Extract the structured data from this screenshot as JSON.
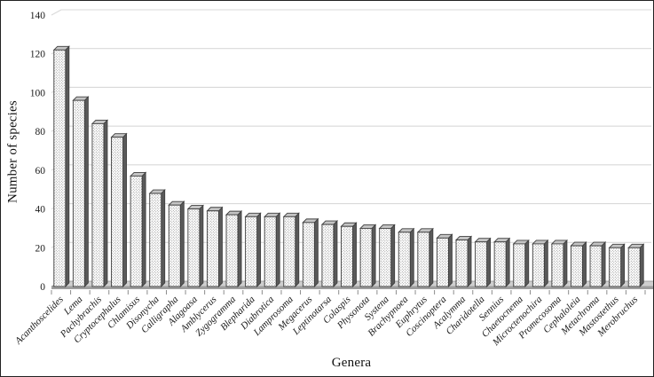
{
  "figure": {
    "background": "#ffffff",
    "border_color": "#222222"
  },
  "chart_data": {
    "type": "bar",
    "title": "",
    "xlabel": "Genera",
    "ylabel": "Number of species",
    "ylim": [
      0,
      140
    ],
    "ytick_step": 20,
    "yticks": [
      0,
      20,
      40,
      60,
      80,
      100,
      120,
      140
    ],
    "grid": true,
    "legend": "none",
    "style": "3d-column-pattern-fill",
    "categories": [
      "Acanthoscelides",
      "Lema",
      "Pachybrachis",
      "Cryptocephalus",
      "Chlamisus",
      "Disonycha",
      "Calligrapha",
      "Alagoasa",
      "Amblycerus",
      "Zygogramma",
      "Blepharida",
      "Diabrotica",
      "Lamprosoma",
      "Megacerus",
      "Leptinotarsa",
      "Colaspis",
      "Physonota",
      "Systena",
      "Brachypnoea",
      "Euphrytus",
      "Coscinoptera",
      "Acalymma",
      "Charidotella",
      "Sennius",
      "Chaetocnema",
      "Microctenochira",
      "Promecosoma",
      "Cephaloleia",
      "Metachroma",
      "Mastostethus",
      "Merobruchus"
    ],
    "values": [
      122,
      96,
      84,
      77,
      57,
      48,
      42,
      40,
      39,
      37,
      36,
      36,
      36,
      33,
      32,
      31,
      30,
      30,
      28,
      28,
      25,
      24,
      23,
      23,
      22,
      22,
      22,
      21,
      21,
      20,
      20
    ],
    "colors": {
      "bar_front": "#ffffff",
      "bar_pattern_dot": "#8c8c8c",
      "bar_side": "#5a5a5a",
      "bar_top": "#c4c4c4",
      "bar_outline": "#3f3f3f",
      "gridline": "#d9d9d9",
      "floor_top": "#cfcfcf",
      "floor_front": "#9e9e9e",
      "floor_outline": "#8c8c8c",
      "tick": "#8c8c8c",
      "text": "#1a1a1a"
    }
  }
}
